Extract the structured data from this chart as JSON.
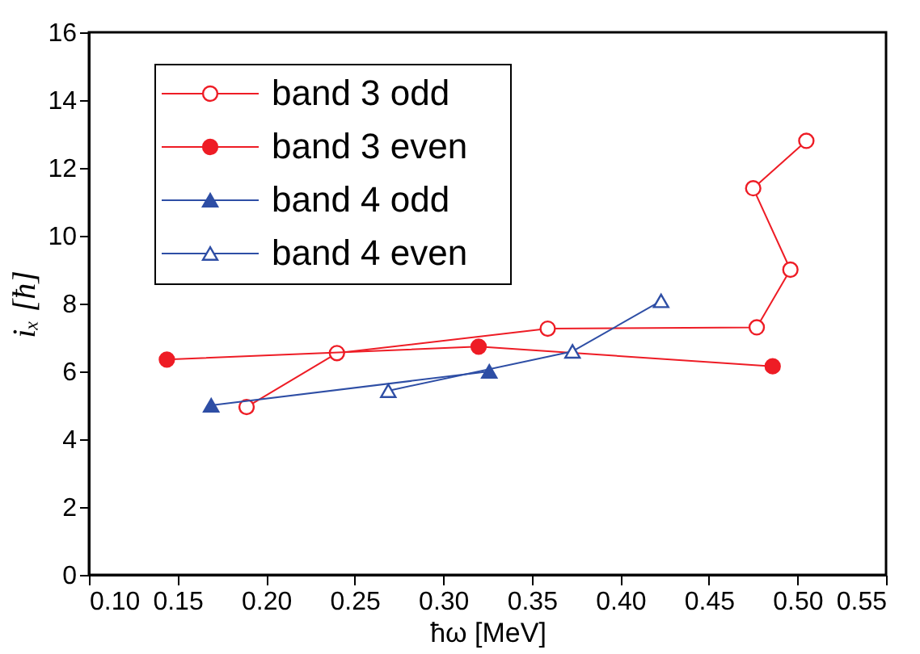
{
  "chart_data": {
    "type": "line",
    "xlabel": "ħω [MeV]",
    "ylabel": "iₓ [ħ]",
    "xlim": [
      0.1,
      0.55
    ],
    "xticks": [
      {
        "value": 0.1,
        "label": "0.10"
      },
      {
        "value": 0.15,
        "label": "0.15"
      },
      {
        "value": 0.2,
        "label": "0.20"
      },
      {
        "value": 0.25,
        "label": "0.25"
      },
      {
        "value": 0.3,
        "label": "0.30"
      },
      {
        "value": 0.35,
        "label": "0.35"
      },
      {
        "value": 0.4,
        "label": "0.40"
      },
      {
        "value": 0.45,
        "label": "0.45"
      },
      {
        "value": 0.5,
        "label": "0.50"
      },
      {
        "value": 0.55,
        "label": "0.55"
      }
    ],
    "ylim": [
      0,
      16
    ],
    "yticks": [
      0,
      2,
      4,
      6,
      8,
      10,
      12,
      14,
      16
    ],
    "grid": false,
    "legend": "top left",
    "line_style": "solid",
    "series": [
      {
        "name": "band 3 odd",
        "color": "#ee1c25",
        "marker": "circle",
        "colors": [
          "#ffffff",
          "#ffffff",
          "#ffffff",
          "#ffffff",
          "#ffffff",
          "#ffffff",
          "#ffffff"
        ],
        "x": [
          0.189,
          0.24,
          0.359,
          0.477,
          0.496,
          0.475,
          0.505
        ],
        "values": [
          4.95,
          6.54,
          7.26,
          7.3,
          9.0,
          11.4,
          12.8
        ]
      },
      {
        "name": "band 3 even",
        "color": "#ee1c25",
        "marker": "circle",
        "colors": [
          "#ee1c25",
          "#ee1c25",
          "#ee1c25"
        ],
        "x": [
          0.144,
          0.32,
          0.486
        ],
        "values": [
          6.35,
          6.73,
          6.15
        ]
      },
      {
        "name": "band 4 odd",
        "color": "#2e4ea5",
        "marker": "triangle",
        "colors": [
          "#2e4ea5",
          "#2e4ea5"
        ],
        "x": [
          0.169,
          0.326
        ],
        "values": [
          5.0,
          6.0
        ]
      },
      {
        "name": "band 4 even",
        "color": "#2e4ea5",
        "marker": "triangle",
        "colors": [
          "#ffffff",
          "#ffffff",
          "#ffffff"
        ],
        "x": [
          0.269,
          0.373,
          0.423
        ],
        "values": [
          5.43,
          6.59,
          8.08
        ]
      }
    ]
  }
}
